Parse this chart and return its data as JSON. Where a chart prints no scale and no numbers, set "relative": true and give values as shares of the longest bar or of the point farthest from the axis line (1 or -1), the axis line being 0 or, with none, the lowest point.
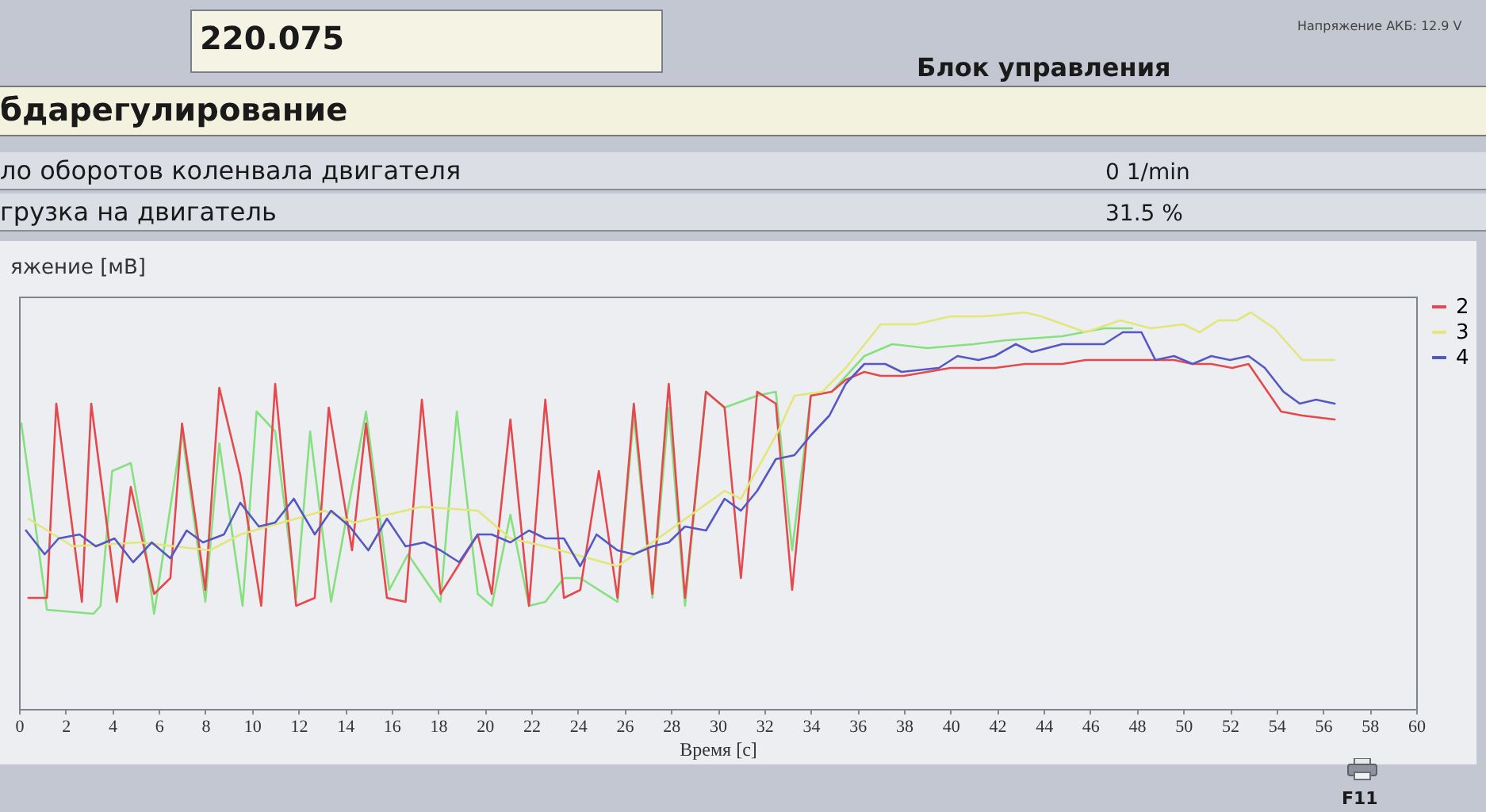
{
  "chart_data": {
    "type": "line",
    "title": "бдарегулирование",
    "xlabel": "Время [с]",
    "ylabel": "яжение [мВ]",
    "annotations": [
      "220.075",
      "Блок управления",
      "Напряжение АКБ: 12.9 V",
      "ло оборотов коленвала двигателя",
      "0 1/min",
      "грузка на двигатель",
      "31.5 %",
      "F11"
    ],
    "relative": true,
    "xlim": [
      0,
      60
    ],
    "xticks": [
      0,
      2,
      4,
      6,
      8,
      10,
      12,
      14,
      16,
      18,
      20,
      22,
      24,
      26,
      28,
      30,
      32,
      34,
      36,
      38,
      40,
      42,
      44,
      46,
      48,
      50,
      52,
      54,
      56,
      58,
      60
    ],
    "legend": "right",
    "series": [
      {
        "color": "#86e07f",
        "x": [
          0.1,
          1.2,
          3.2,
          3.5,
          4.0,
          4.8,
          5.4,
          5.8,
          7.0,
          8.0,
          8.6,
          9.6,
          10.2,
          11.0,
          11.9,
          12.5,
          13.4,
          14.9,
          15.9,
          16.7,
          18.1,
          18.8,
          19.7,
          20.3,
          21.1,
          21.9,
          22.6,
          23.4,
          24.1,
          24.9,
          25.7,
          26.4,
          27.2,
          27.9,
          28.6,
          29.5,
          30.3,
          31.7,
          32.5,
          33.2,
          34.0,
          34.9,
          36.3,
          37.5,
          39.0,
          41.0,
          42.4,
          44.8,
          46.6,
          47.8
        ],
        "values": [
          0.72,
          0.25,
          0.24,
          0.26,
          0.6,
          0.62,
          0.42,
          0.24,
          0.7,
          0.27,
          0.67,
          0.26,
          0.75,
          0.7,
          0.28,
          0.7,
          0.27,
          0.75,
          0.3,
          0.39,
          0.27,
          0.75,
          0.29,
          0.26,
          0.49,
          0.26,
          0.27,
          0.33,
          0.33,
          0.3,
          0.27,
          0.74,
          0.28,
          0.76,
          0.26,
          0.8,
          0.76,
          0.79,
          0.8,
          0.4,
          0.79,
          0.8,
          0.89,
          0.92,
          0.91,
          0.92,
          0.93,
          0.94,
          0.96,
          0.96
        ]
      },
      {
        "name": "2",
        "color": "#e5484d",
        "x": [
          0.4,
          1.2,
          1.6,
          2.7,
          3.1,
          4.2,
          4.8,
          5.8,
          6.5,
          7.0,
          8.0,
          8.6,
          9.5,
          10.4,
          11.0,
          11.9,
          12.7,
          13.3,
          14.3,
          14.9,
          15.8,
          16.6,
          17.3,
          18.1,
          19.7,
          20.3,
          21.1,
          21.9,
          22.6,
          23.4,
          24.1,
          24.9,
          25.7,
          26.4,
          27.2,
          27.9,
          28.6,
          29.5,
          30.3,
          31.0,
          31.7,
          32.5,
          33.2,
          34.0,
          34.9,
          35.5,
          36.3,
          37.0,
          38.0,
          39.0,
          40.0,
          41.9,
          43.2,
          44.8,
          45.8,
          47.8,
          49.6,
          50.4,
          51.2,
          52.1,
          52.8,
          54.2,
          55.1,
          56.5
        ],
        "values": [
          0.28,
          0.28,
          0.77,
          0.27,
          0.77,
          0.27,
          0.56,
          0.29,
          0.33,
          0.72,
          0.3,
          0.81,
          0.59,
          0.26,
          0.82,
          0.26,
          0.28,
          0.76,
          0.4,
          0.72,
          0.28,
          0.27,
          0.78,
          0.29,
          0.44,
          0.29,
          0.73,
          0.26,
          0.78,
          0.28,
          0.3,
          0.6,
          0.28,
          0.77,
          0.29,
          0.82,
          0.28,
          0.8,
          0.76,
          0.33,
          0.8,
          0.77,
          0.3,
          0.79,
          0.8,
          0.83,
          0.85,
          0.84,
          0.84,
          0.85,
          0.86,
          0.86,
          0.87,
          0.87,
          0.88,
          0.88,
          0.88,
          0.87,
          0.87,
          0.86,
          0.87,
          0.75,
          0.74,
          0.73
        ]
      },
      {
        "name": "3",
        "color": "#e3e67a",
        "x": [
          0.4,
          2.3,
          5.2,
          8.2,
          9.5,
          13.1,
          14.4,
          17.3,
          19.7,
          21.1,
          22.6,
          25.7,
          27.2,
          30.3,
          31.0,
          32.6,
          33.3,
          34.5,
          35.5,
          37.0,
          38.5,
          40.0,
          41.4,
          43.2,
          43.9,
          45.8,
          47.3,
          48.6,
          50.0,
          50.7,
          51.5,
          52.3,
          52.9,
          53.9,
          55.1,
          56.5
        ],
        "values": [
          0.48,
          0.41,
          0.42,
          0.4,
          0.44,
          0.5,
          0.47,
          0.51,
          0.5,
          0.43,
          0.41,
          0.36,
          0.42,
          0.55,
          0.53,
          0.7,
          0.79,
          0.8,
          0.86,
          0.97,
          0.97,
          0.99,
          0.99,
          1.0,
          0.99,
          0.95,
          0.98,
          0.96,
          0.97,
          0.95,
          0.98,
          0.98,
          1.0,
          0.96,
          0.88,
          0.88
        ]
      },
      {
        "name": "4",
        "color": "#5558c4",
        "x": [
          0.3,
          1.1,
          1.7,
          2.6,
          3.3,
          4.1,
          4.9,
          5.7,
          6.5,
          7.2,
          7.9,
          8.8,
          9.5,
          10.3,
          11.0,
          11.8,
          12.7,
          13.4,
          14.2,
          15.0,
          15.8,
          16.6,
          17.4,
          18.1,
          18.9,
          19.7,
          20.3,
          21.1,
          21.9,
          22.6,
          23.4,
          24.1,
          24.8,
          25.7,
          26.4,
          27.2,
          27.9,
          28.6,
          29.5,
          30.3,
          31.0,
          31.7,
          32.5,
          33.3,
          34.0,
          34.8,
          35.5,
          36.3,
          37.2,
          37.9,
          39.5,
          40.3,
          41.2,
          41.9,
          42.8,
          43.5,
          44.8,
          45.6,
          46.6,
          47.4,
          48.2,
          48.8,
          49.6,
          50.4,
          51.2,
          52.0,
          52.8,
          53.5,
          54.3,
          55.0,
          55.7,
          56.5
        ],
        "values": [
          0.45,
          0.39,
          0.43,
          0.44,
          0.41,
          0.43,
          0.37,
          0.42,
          0.38,
          0.45,
          0.42,
          0.44,
          0.52,
          0.46,
          0.47,
          0.53,
          0.44,
          0.5,
          0.46,
          0.4,
          0.48,
          0.41,
          0.42,
          0.4,
          0.37,
          0.44,
          0.44,
          0.42,
          0.45,
          0.43,
          0.43,
          0.36,
          0.44,
          0.4,
          0.39,
          0.41,
          0.42,
          0.46,
          0.45,
          0.53,
          0.5,
          0.55,
          0.63,
          0.64,
          0.69,
          0.74,
          0.82,
          0.87,
          0.87,
          0.85,
          0.86,
          0.89,
          0.88,
          0.89,
          0.92,
          0.9,
          0.92,
          0.92,
          0.92,
          0.95,
          0.95,
          0.88,
          0.89,
          0.87,
          0.89,
          0.88,
          0.89,
          0.86,
          0.8,
          0.77,
          0.78,
          0.77
        ]
      }
    ]
  }
}
